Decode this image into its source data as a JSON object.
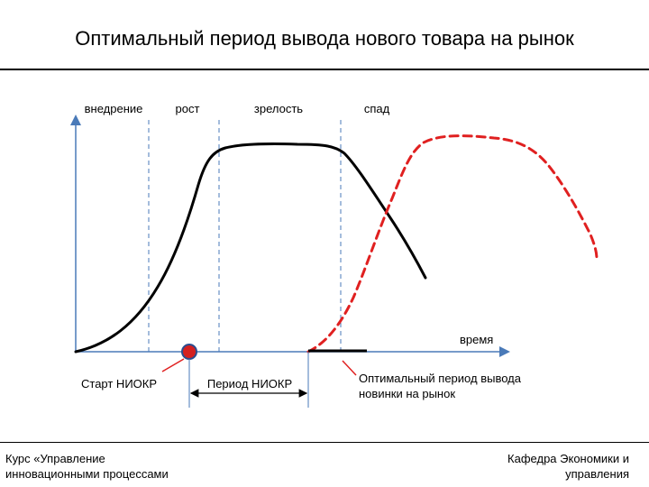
{
  "title": "Оптимальный период вывода нового товара на рынок",
  "stages": [
    "внедрение",
    "рост",
    "зрелость",
    "спад"
  ],
  "axis_label": "время",
  "annotations": {
    "start_niokr": "Старт НИОКР",
    "period_niokr": "Период НИОКР",
    "optimal_period_line1": "Оптимальный период вывода",
    "optimal_period_line2": "новинки на рынок"
  },
  "footer": {
    "left_line1": "Курс «Управление",
    "left_line2": "инновационными процессами",
    "right_line1": "Кафедра Экономики и",
    "right_line2": "управления"
  },
  "colors": {
    "curve": "#000000",
    "new_product_curve": "#e02020",
    "axis": "#4a7ab8",
    "stage_dividers": "#4a7ab8",
    "marker_fill": "#d42020",
    "marker_stroke": "#2a4d8f"
  }
}
